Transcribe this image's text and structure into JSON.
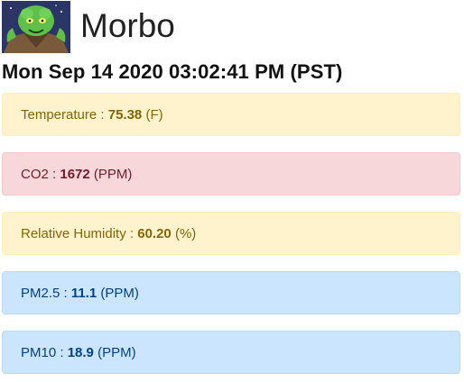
{
  "header": {
    "title": "Morbo",
    "avatar_icon": "morbo-avatar-icon"
  },
  "datetime": "Mon Sep 14 2020 03:02:41 PM (PST)",
  "readings": [
    {
      "label": "Temperature",
      "value": "75.38",
      "unit": "(F)",
      "status": "warning"
    },
    {
      "label": "CO2",
      "value": "1672",
      "unit": "(PPM)",
      "status": "danger"
    },
    {
      "label": "Relative Humidity",
      "value": "60.20",
      "unit": "(%)",
      "status": "warning"
    },
    {
      "label": "PM2.5",
      "value": "11.1",
      "unit": "(PPM)",
      "status": "info"
    },
    {
      "label": "PM10",
      "value": "18.9",
      "unit": "(PPM)",
      "status": "info"
    }
  ],
  "colors": {
    "warning_bg": "#fff3cd",
    "warning_text": "#856404",
    "danger_bg": "#f8d7da",
    "danger_text": "#721c24",
    "info_bg": "#cce5ff",
    "info_text": "#004085"
  }
}
